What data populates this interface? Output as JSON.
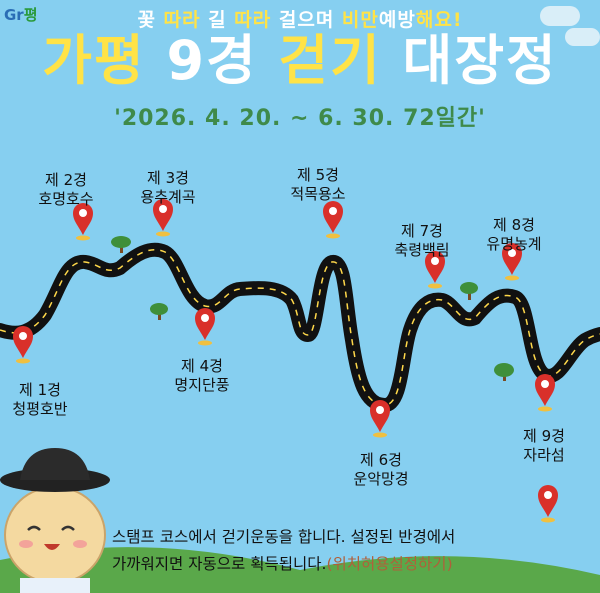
{
  "logo": {
    "text_g": "Gr",
    "text_p": "평"
  },
  "header": {
    "subtitle_parts": [
      "꽃 ",
      "따라",
      " 길 ",
      "따라",
      " 걸으며 ",
      "비만",
      "예방",
      "해요!"
    ],
    "title_parts": [
      "가평",
      " 9경 ",
      "걷기",
      " 대장정"
    ],
    "period": "'2026. 4. 20. ~ 6. 30. 72일간'"
  },
  "spots": [
    {
      "num": "제 1경",
      "name": "청평호반"
    },
    {
      "num": "제 2경",
      "name": "호명호수"
    },
    {
      "num": "제 3경",
      "name": "용추계곡"
    },
    {
      "num": "제 4경",
      "name": "명지단풍"
    },
    {
      "num": "제 5경",
      "name": "적목용소"
    },
    {
      "num": "제 6경",
      "name": "운악망경"
    },
    {
      "num": "제 7경",
      "name": "축령백림"
    },
    {
      "num": "제 8경",
      "name": "유명농계"
    },
    {
      "num": "제 9경",
      "name": "자라섬"
    }
  ],
  "description": {
    "line1": "스탬프 코스에서 걷기운동을 합니다. 설정된 반경에서",
    "line2": "가까워지면 자동으로 획득됩니다.",
    "link": "(위치허용설정하기)"
  },
  "colors": {
    "sky": "#86cff0",
    "accent_yellow": "#ffe347",
    "period_green": "#3f8a4a",
    "marker_red": "#d9302a",
    "link": "#b0603a"
  }
}
